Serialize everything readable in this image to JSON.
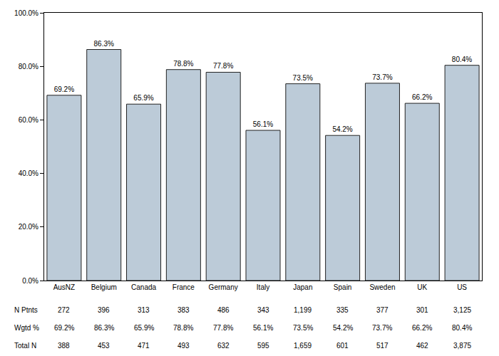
{
  "chart_data": {
    "type": "bar",
    "categories": [
      "AusNZ",
      "Belgium",
      "Canada",
      "France",
      "Germany",
      "Italy",
      "Japan",
      "Spain",
      "Sweden",
      "UK",
      "US"
    ],
    "values": [
      69.2,
      86.3,
      65.9,
      78.8,
      77.8,
      56.1,
      73.5,
      54.2,
      73.7,
      66.2,
      80.4
    ],
    "value_labels": [
      "69.2%",
      "86.3%",
      "65.9%",
      "78.8%",
      "77.8%",
      "56.1%",
      "73.5%",
      "54.2%",
      "73.7%",
      "66.2%",
      "80.4%"
    ],
    "data_labels": true,
    "color": "#bccbd8",
    "ylim": [
      0,
      100
    ],
    "yticks": [
      {
        "value": 0,
        "label": "0.0%"
      },
      {
        "value": 20,
        "label": "20.0%"
      },
      {
        "value": 40,
        "label": "40.0%"
      },
      {
        "value": 60,
        "label": "60.0%"
      },
      {
        "value": 80,
        "label": "80.0%"
      },
      {
        "value": 100,
        "label": "100.0%"
      }
    ],
    "grid": false,
    "table": {
      "rows": [
        {
          "label": "N Ptnts",
          "values": [
            "272",
            "396",
            "313",
            "383",
            "486",
            "343",
            "1,199",
            "335",
            "377",
            "301",
            "3,125"
          ]
        },
        {
          "label": "Wgtd %",
          "values": [
            "69.2%",
            "86.3%",
            "65.9%",
            "78.8%",
            "77.8%",
            "56.1%",
            "73.5%",
            "54.2%",
            "73.7%",
            "66.2%",
            "80.4%"
          ]
        },
        {
          "label": "Total N",
          "values": [
            "388",
            "453",
            "471",
            "493",
            "632",
            "595",
            "1,659",
            "601",
            "517",
            "462",
            "3,875"
          ]
        }
      ]
    }
  }
}
